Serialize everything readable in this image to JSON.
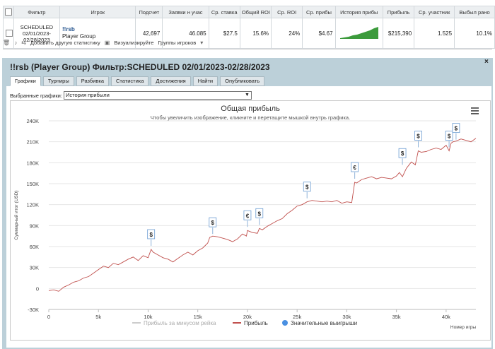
{
  "table": {
    "headers": [
      "Фильтр",
      "Игрок",
      "Подсчет",
      "Заявки н учас",
      "Ср. ставка",
      "Общий ROI",
      "Ср. ROI",
      "Ср. прибы",
      "История прибы",
      "Прибыль",
      "Ср. участник",
      "Выбыл рано"
    ],
    "row": {
      "filter": "SCHEDULED 02/01/2023-02/28/2023",
      "player_name": "!!rsb",
      "player_group": "Player Group",
      "count": "42,697",
      "entries": "46.085",
      "avg_stake": "$27.5",
      "total_roi": "15.6%",
      "avg_roi": "24%",
      "avg_profit": "$4.67",
      "profit": "$215,390",
      "avg_entrants": "1.525",
      "early_exit": "10.1%"
    }
  },
  "toolbar": {
    "add_stats": "Добавить другую статистику",
    "visualize": "Визуализируйте",
    "player_groups": "Группы игроков"
  },
  "panel": {
    "title": "!!rsb (Player Group) Фильтр:SCHEDULED 02/01/2023-02/28/2023",
    "close": "×",
    "tabs": [
      "Графики",
      "Турниры",
      "Разбивка",
      "Статистика",
      "Достижения",
      "Найти",
      "Опубликовать"
    ],
    "select_label": "Выбранные графики:",
    "select_value": "История прибыли"
  },
  "chart_data": {
    "type": "line",
    "title": "Общая прибыль",
    "subtitle": "Чтобы увеличить изображение, кликните и перетащите мышкой внутрь графика.",
    "ylabel": "Суммарный итог (USD)",
    "xlabel": "Номер игры",
    "xlim": [
      0,
      43000
    ],
    "ylim": [
      -30000,
      240000
    ],
    "y_ticks": [
      "-30K",
      "0",
      "30K",
      "60K",
      "90K",
      "120K",
      "150K",
      "180K",
      "210K",
      "240K"
    ],
    "x_ticks": [
      "0",
      "5k",
      "10k",
      "15k",
      "20k",
      "25k",
      "30k",
      "35k",
      "40k"
    ],
    "series": [
      {
        "name": "Прибыль за минусом рейка",
        "color": "#cccccc",
        "values": []
      },
      {
        "name": "Прибыль",
        "color": "#c0504d",
        "x": [
          0,
          500,
          1000,
          1500,
          2000,
          2500,
          3000,
          3500,
          4000,
          4500,
          5000,
          5500,
          6000,
          6500,
          7000,
          7500,
          8000,
          8500,
          9000,
          9500,
          10000,
          10300,
          10500,
          11000,
          11500,
          12000,
          12500,
          13000,
          13500,
          14000,
          14500,
          15000,
          15500,
          16000,
          16200,
          16500,
          17000,
          17500,
          18000,
          18500,
          19000,
          19500,
          19900,
          20000,
          20500,
          21000,
          21200,
          21500,
          22000,
          22500,
          23000,
          23500,
          24000,
          24500,
          25000,
          25500,
          26000,
          26500,
          27000,
          27500,
          28000,
          28500,
          29000,
          29500,
          30000,
          30500,
          30800,
          31000,
          31500,
          32000,
          32500,
          33000,
          33500,
          34000,
          34500,
          35000,
          35300,
          35600,
          36000,
          36500,
          36900,
          37200,
          37500,
          38000,
          38500,
          39000,
          39500,
          40000,
          40300,
          40500,
          40700,
          41000,
          41500,
          42000,
          42500,
          43000
        ],
        "y": [
          -3000,
          -2000,
          -4000,
          2000,
          5000,
          9000,
          11000,
          15000,
          17000,
          22000,
          27000,
          32000,
          30000,
          36000,
          34000,
          38000,
          42000,
          45000,
          40000,
          47000,
          44000,
          56000,
          52000,
          48000,
          44000,
          42000,
          38000,
          43000,
          48000,
          52000,
          48000,
          54000,
          58000,
          65000,
          73000,
          75000,
          74000,
          72000,
          70000,
          67000,
          71000,
          78000,
          75000,
          83000,
          80000,
          79000,
          86000,
          84000,
          89000,
          93000,
          97000,
          100000,
          107000,
          112000,
          118000,
          120000,
          124000,
          126000,
          125000,
          124000,
          125000,
          124000,
          126000,
          122000,
          124000,
          123000,
          152000,
          151000,
          156000,
          158000,
          160000,
          157000,
          159000,
          158000,
          157000,
          161000,
          166000,
          160000,
          172000,
          181000,
          177000,
          197000,
          195000,
          196000,
          199000,
          201000,
          199000,
          205000,
          197000,
          208000,
          210000,
          211000,
          214000,
          212000,
          210000,
          215000
        ]
      },
      {
        "name": "Значительные выигрыши",
        "color": "#4a90e2",
        "values": []
      }
    ],
    "markers": [
      {
        "x": 10300,
        "y": 56000,
        "label": "$"
      },
      {
        "x": 16500,
        "y": 73000,
        "label": "$"
      },
      {
        "x": 20000,
        "y": 83000,
        "label": "€"
      },
      {
        "x": 21200,
        "y": 86000,
        "label": "$"
      },
      {
        "x": 26000,
        "y": 124000,
        "label": "$"
      },
      {
        "x": 30800,
        "y": 152000,
        "label": "€"
      },
      {
        "x": 35600,
        "y": 172000,
        "label": "$"
      },
      {
        "x": 37200,
        "y": 197000,
        "label": "$"
      },
      {
        "x": 40300,
        "y": 197000,
        "label": "$"
      },
      {
        "x": 41000,
        "y": 208000,
        "label": "$"
      }
    ],
    "grid": true,
    "legend_position": "bottom"
  }
}
